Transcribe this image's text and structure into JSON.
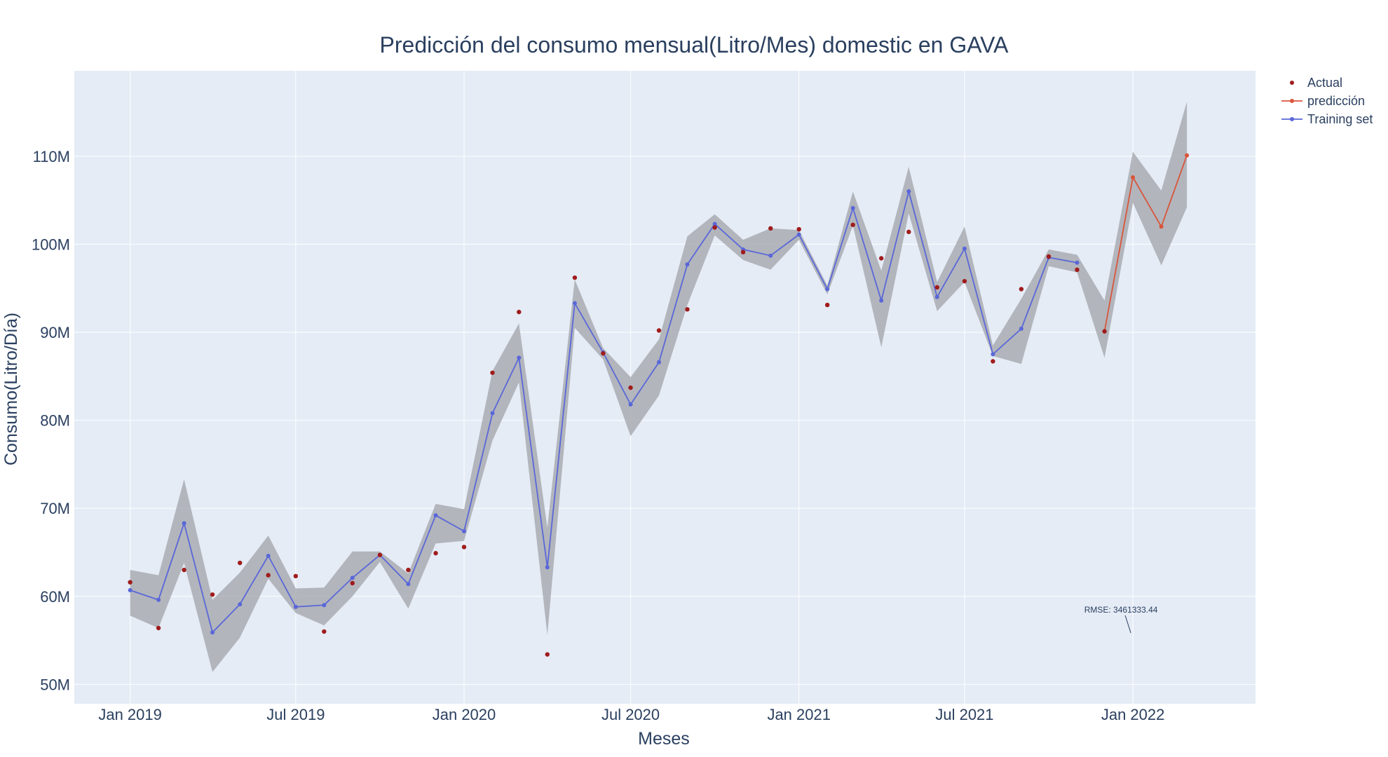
{
  "chart_data": {
    "type": "line",
    "title": "Predicción del consumo mensual(Litro/Mes) domestic en GAVA",
    "xlabel": "Meses",
    "ylabel": "Consumo(Litro/Día)",
    "x_ticks": [
      "Jan 2019",
      "Jul 2019",
      "Jan 2020",
      "Jul 2020",
      "Jan 2021",
      "Jul 2021",
      "Jan 2022"
    ],
    "y_ticks": [
      "50M",
      "60M",
      "70M",
      "80M",
      "90M",
      "100M",
      "110M"
    ],
    "y_tick_values": [
      50000000,
      60000000,
      70000000,
      80000000,
      90000000,
      100000000,
      110000000
    ],
    "xlim": [
      "2018-11-01",
      "2022-05-15"
    ],
    "ylim": [
      47800000,
      119700000
    ],
    "grid": true,
    "legend_position": "top-right",
    "colors": {
      "plot_background": "#e5ecf6",
      "grid": "#ffffff",
      "actual": "#a01c1c",
      "prediction": "#d9553b",
      "training": "#5a67d8",
      "band": "#a9acb1",
      "text": "#2a3f5f"
    },
    "series": [
      {
        "name": "Actual",
        "mode": "markers",
        "x": [
          "2019-01",
          "2019-02",
          "2019-03",
          "2019-04",
          "2019-05",
          "2019-06",
          "2019-07",
          "2019-08",
          "2019-09",
          "2019-10",
          "2019-11",
          "2019-12",
          "2020-01",
          "2020-02",
          "2020-03",
          "2020-04",
          "2020-05",
          "2020-06",
          "2020-07",
          "2020-08",
          "2020-09",
          "2020-10",
          "2020-11",
          "2020-12",
          "2021-01",
          "2021-02",
          "2021-03",
          "2021-04",
          "2021-05",
          "2021-06",
          "2021-07",
          "2021-08",
          "2021-09",
          "2021-10",
          "2021-11",
          "2021-12"
        ],
        "values": [
          61600000,
          56400000,
          63000000,
          60200000,
          63800000,
          62400000,
          62300000,
          56000000,
          61500000,
          64700000,
          63000000,
          64900000,
          65600000,
          85400000,
          92300000,
          53400000,
          96200000,
          87600000,
          83700000,
          90200000,
          92600000,
          101900000,
          99100000,
          101800000,
          101700000,
          93100000,
          102200000,
          98400000,
          101400000,
          95100000,
          95800000,
          86700000,
          94900000,
          98600000,
          97100000,
          90100000
        ]
      },
      {
        "name": "predicción",
        "mode": "lines+markers",
        "x": [
          "2021-12",
          "2022-01",
          "2022-02",
          "2022-03"
        ],
        "values": [
          90100000,
          107600000,
          102000000,
          110100000
        ]
      },
      {
        "name": "Training set",
        "mode": "lines+markers",
        "x": [
          "2019-01",
          "2019-02",
          "2019-03",
          "2019-04",
          "2019-05",
          "2019-06",
          "2019-07",
          "2019-08",
          "2019-09",
          "2019-10",
          "2019-11",
          "2019-12",
          "2020-01",
          "2020-02",
          "2020-03",
          "2020-04",
          "2020-05",
          "2020-06",
          "2020-07",
          "2020-08",
          "2020-09",
          "2020-10",
          "2020-11",
          "2020-12",
          "2021-01",
          "2021-02",
          "2021-03",
          "2021-04",
          "2021-05",
          "2021-06",
          "2021-07",
          "2021-08",
          "2021-09",
          "2021-10",
          "2021-11"
        ],
        "values": [
          60700000,
          59600000,
          68300000,
          55900000,
          59100000,
          64600000,
          58800000,
          59000000,
          62100000,
          64700000,
          61400000,
          69200000,
          67400000,
          80800000,
          87100000,
          63300000,
          93300000,
          87700000,
          81800000,
          86600000,
          97700000,
          102300000,
          99400000,
          98700000,
          101100000,
          94900000,
          104100000,
          93600000,
          106000000,
          94000000,
          99500000,
          87500000,
          90400000,
          98500000,
          97900000
        ]
      }
    ],
    "confidence_band": {
      "x": [
        "2019-01",
        "2019-02",
        "2019-03",
        "2019-04",
        "2019-05",
        "2019-06",
        "2019-07",
        "2019-08",
        "2019-09",
        "2019-10",
        "2019-11",
        "2019-12",
        "2020-01",
        "2020-02",
        "2020-03",
        "2020-04",
        "2020-05",
        "2020-06",
        "2020-07",
        "2020-08",
        "2020-09",
        "2020-10",
        "2020-11",
        "2020-12",
        "2021-01",
        "2021-02",
        "2021-03",
        "2021-04",
        "2021-05",
        "2021-06",
        "2021-07",
        "2021-08",
        "2021-09",
        "2021-10",
        "2021-11",
        "2021-12",
        "2022-01",
        "2022-02",
        "2022-03"
      ],
      "upper": [
        63000000,
        62400000,
        73300000,
        59600000,
        62700000,
        66900000,
        60900000,
        61000000,
        65100000,
        65100000,
        62600000,
        70500000,
        69900000,
        85600000,
        91000000,
        67800000,
        96000000,
        88200000,
        84900000,
        89200000,
        100900000,
        103400000,
        100500000,
        101800000,
        101600000,
        95300000,
        106000000,
        97000000,
        108800000,
        95700000,
        102000000,
        88500000,
        93800000,
        99400000,
        98800000,
        93600000,
        110500000,
        106100000,
        116200000
      ],
      "lower": [
        57800000,
        56400000,
        63800000,
        51400000,
        55300000,
        62000000,
        58100000,
        56700000,
        60000000,
        63900000,
        58600000,
        66000000,
        66300000,
        77700000,
        84300000,
        55600000,
        90500000,
        86900000,
        78200000,
        82800000,
        93100000,
        101000000,
        98200000,
        97100000,
        100500000,
        94300000,
        102100000,
        88300000,
        103500000,
        92400000,
        95700000,
        87300000,
        86400000,
        97500000,
        96800000,
        87100000,
        104700000,
        97600000,
        104200000
      ]
    },
    "annotations": [
      {
        "text": "RMSE: 3461333.44",
        "x": "2022-01",
        "y": 56000000
      }
    ]
  }
}
